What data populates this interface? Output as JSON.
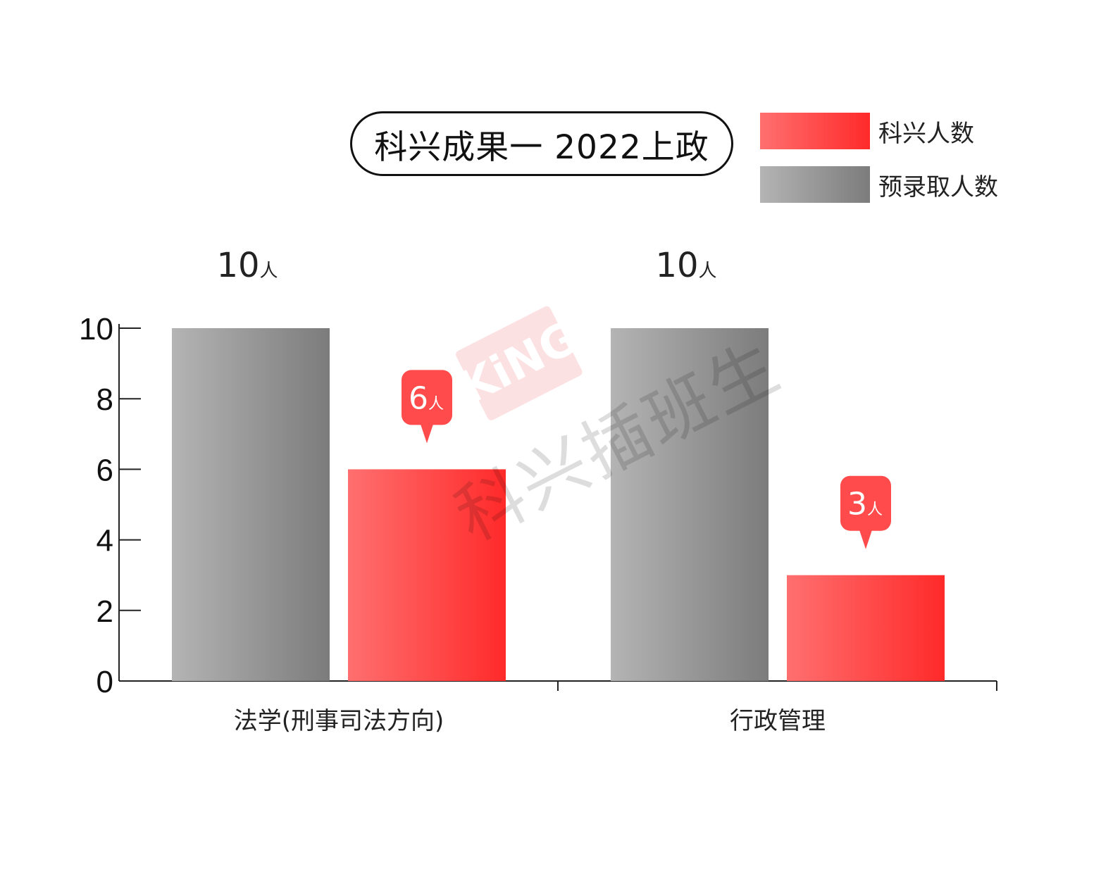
{
  "title": "科兴成果一 2022上政",
  "legend": [
    {
      "label": "科兴人数",
      "color_from": "#ff6f6f",
      "color_to": "#ff2a2a"
    },
    {
      "label": "预录取人数",
      "color_from": "#b4b4b4",
      "color_to": "#7c7c7c"
    }
  ],
  "watermark": {
    "text": "科兴插班生",
    "logo_text": "KiNG"
  },
  "chart_data": {
    "type": "bar",
    "categories": [
      "法学(刑事司法方向)",
      "行政管理"
    ],
    "series": [
      {
        "name": "预录取人数",
        "values": [
          10,
          10
        ],
        "labels": [
          "10人",
          "10人"
        ],
        "label_style": "plain",
        "color": "#8e8e8e"
      },
      {
        "name": "科兴人数",
        "values": [
          6,
          3
        ],
        "labels": [
          "6人",
          "3人"
        ],
        "label_style": "callout",
        "color": "#ff3b3b"
      }
    ],
    "ylim": [
      0,
      10
    ],
    "yticks": [
      0,
      2,
      4,
      6,
      8,
      10
    ],
    "unit": "人",
    "grid": false,
    "legend_position": "top-right"
  }
}
